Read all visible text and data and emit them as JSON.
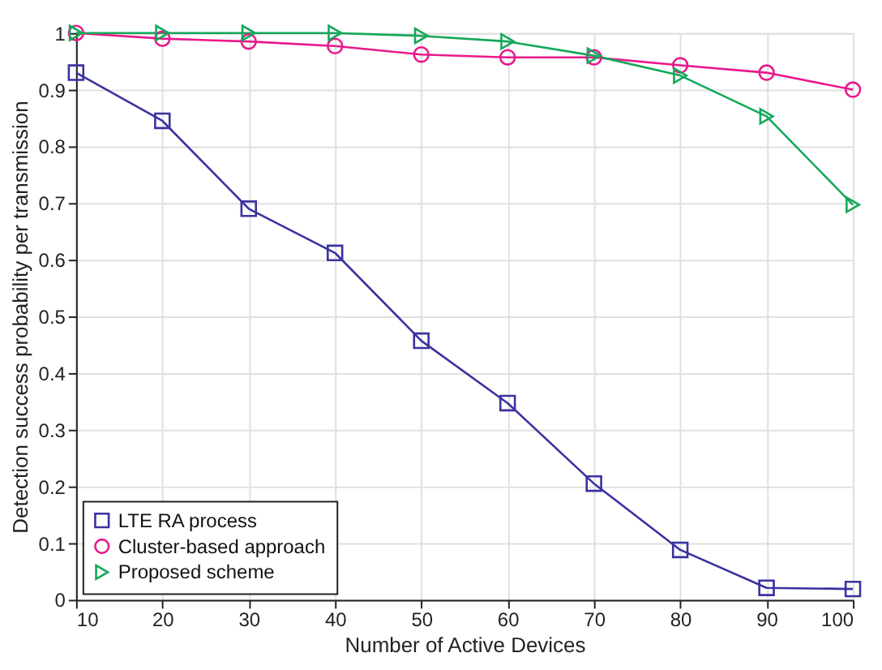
{
  "chart_data": {
    "type": "line",
    "xlabel": "Number of Active Devices",
    "ylabel": "Detection success probability per transmission",
    "x": [
      10,
      20,
      30,
      40,
      50,
      60,
      70,
      80,
      90,
      100
    ],
    "xlim": [
      10,
      100
    ],
    "xticks": [
      10,
      20,
      30,
      40,
      50,
      60,
      70,
      80,
      90,
      100
    ],
    "ylim": [
      0,
      1
    ],
    "yticks": [
      0,
      0.1,
      0.2,
      0.3,
      0.4,
      0.5,
      0.6,
      0.7,
      0.8,
      0.9,
      1
    ],
    "grid": true,
    "legend": "bottom left",
    "line_style": "solid",
    "series": [
      {
        "name": "LTE RA process",
        "color": "#3a32a0",
        "marker": "square",
        "values": [
          0.93,
          0.845,
          0.69,
          0.612,
          0.457,
          0.347,
          0.205,
          0.088,
          0.021,
          0.019
        ]
      },
      {
        "name": "Cluster-based approach",
        "color": "#e8198c",
        "marker": "circle",
        "values": [
          1.0,
          0.99,
          0.985,
          0.977,
          0.962,
          0.957,
          0.957,
          0.943,
          0.93,
          0.9
        ]
      },
      {
        "name": "Proposed scheme",
        "color": "#14a85a",
        "marker": "triangle",
        "values": [
          1.0,
          1.0,
          1.0,
          1.0,
          0.995,
          0.985,
          0.96,
          0.925,
          0.853,
          0.697
        ]
      }
    ]
  }
}
